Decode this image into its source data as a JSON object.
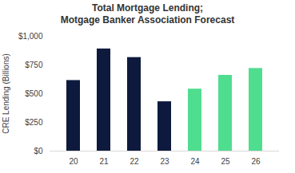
{
  "chart_data": {
    "type": "bar",
    "title": "Total Mortgage Lending;",
    "subtitle": "Motgage Banker Association Forecast",
    "y_label": "CRE Lending (Billions)",
    "categories": [
      "20",
      "21",
      "22",
      "23",
      "24",
      "25",
      "26"
    ],
    "values": [
      615,
      890,
      815,
      430,
      540,
      660,
      720
    ],
    "colors": [
      "#0e1a3d",
      "#0e1a3d",
      "#0e1a3d",
      "#0e1a3d",
      "#4fdd8f",
      "#4fdd8f",
      "#4fdd8f"
    ],
    "ylim": [
      0,
      1000
    ],
    "yticks": [
      {
        "value": 0,
        "label": "$0"
      },
      {
        "value": 250,
        "label": "$250"
      },
      {
        "value": 500,
        "label": "$500"
      },
      {
        "value": 750,
        "label": "$750"
      },
      {
        "value": 1000,
        "label": "$1,000"
      }
    ],
    "grid": false
  }
}
